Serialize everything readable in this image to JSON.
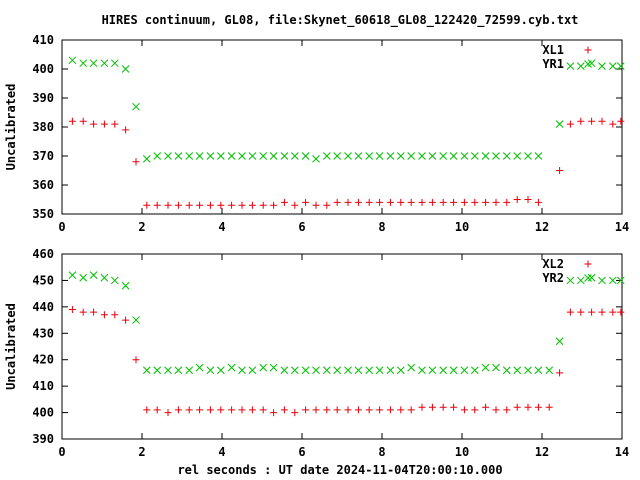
{
  "title": "HIRES continuum, GL08, file:Skynet_60618_GL08_122420_72599.cyb.txt",
  "xlabel": "rel seconds : UT date 2024-11-04T20:00:10.000",
  "chart_data": [
    {
      "type": "scatter",
      "ylabel": "Uncalibrated",
      "xlim": [
        0,
        14
      ],
      "ylim": [
        350,
        410
      ],
      "xticks": [
        "0",
        "2",
        "4",
        "6",
        "8",
        "10",
        "12",
        "14"
      ],
      "yticks": [
        "350",
        "360",
        "370",
        "380",
        "390",
        "400",
        "410"
      ],
      "grid": false,
      "legend": "top-right",
      "series": [
        {
          "name": "XL1",
          "marker": "plus",
          "color": "#e8000b",
          "x": [
            0.26,
            0.53,
            0.79,
            1.06,
            1.32,
            1.59,
            1.85,
            2.12,
            2.38,
            2.65,
            2.91,
            3.18,
            3.44,
            3.71,
            3.97,
            4.24,
            4.5,
            4.76,
            5.03,
            5.29,
            5.56,
            5.82,
            6.09,
            6.35,
            6.62,
            6.88,
            7.15,
            7.41,
            7.68,
            7.94,
            8.21,
            8.47,
            8.73,
            9.0,
            9.26,
            9.53,
            9.79,
            10.06,
            10.32,
            10.59,
            10.85,
            11.12,
            11.38,
            11.65,
            11.91,
            12.18,
            12.44,
            12.71,
            12.97,
            13.24,
            13.5,
            13.77,
            13.97
          ],
          "y": [
            382,
            382,
            381,
            381,
            381,
            379,
            368,
            353,
            353,
            353,
            353,
            353,
            353,
            353,
            353,
            353,
            353,
            353,
            353,
            353,
            354,
            353,
            354,
            353,
            353,
            354,
            354,
            354,
            354,
            354,
            354,
            354,
            354,
            354,
            354,
            354,
            354,
            354,
            354,
            354,
            354,
            354,
            355,
            355,
            354,
            null,
            365,
            381,
            382,
            382,
            382,
            381,
            382
          ]
        },
        {
          "name": "YR1",
          "marker": "cross",
          "color": "#00c000",
          "x": [
            0.26,
            0.53,
            0.79,
            1.06,
            1.32,
            1.59,
            1.85,
            2.12,
            2.38,
            2.65,
            2.91,
            3.18,
            3.44,
            3.71,
            3.97,
            4.24,
            4.5,
            4.76,
            5.03,
            5.29,
            5.56,
            5.82,
            6.09,
            6.35,
            6.62,
            6.88,
            7.15,
            7.41,
            7.68,
            7.94,
            8.21,
            8.47,
            8.73,
            9.0,
            9.26,
            9.53,
            9.79,
            10.06,
            10.32,
            10.59,
            10.85,
            11.12,
            11.38,
            11.65,
            11.91,
            12.18,
            12.44,
            12.71,
            12.97,
            13.24,
            13.5,
            13.77,
            13.97
          ],
          "y": [
            403,
            402,
            402,
            402,
            402,
            400,
            387,
            369,
            370,
            370,
            370,
            370,
            370,
            370,
            370,
            370,
            370,
            370,
            370,
            370,
            370,
            370,
            370,
            369,
            370,
            370,
            370,
            370,
            370,
            370,
            370,
            370,
            370,
            370,
            370,
            370,
            370,
            370,
            370,
            370,
            370,
            370,
            370,
            370,
            370,
            null,
            381,
            401,
            401,
            402,
            401,
            401,
            401
          ]
        }
      ]
    },
    {
      "type": "scatter",
      "ylabel": "Uncalibrated",
      "xlim": [
        0,
        14
      ],
      "ylim": [
        390,
        460
      ],
      "xticks": [
        "0",
        "2",
        "4",
        "6",
        "8",
        "10",
        "12",
        "14"
      ],
      "yticks": [
        "390",
        "400",
        "410",
        "420",
        "430",
        "440",
        "450",
        "460"
      ],
      "grid": false,
      "legend": "top-right",
      "series": [
        {
          "name": "XL2",
          "marker": "plus",
          "color": "#e8000b",
          "x": [
            0.26,
            0.53,
            0.79,
            1.06,
            1.32,
            1.59,
            1.85,
            2.12,
            2.38,
            2.65,
            2.91,
            3.18,
            3.44,
            3.71,
            3.97,
            4.24,
            4.5,
            4.76,
            5.03,
            5.29,
            5.56,
            5.82,
            6.09,
            6.35,
            6.62,
            6.88,
            7.15,
            7.41,
            7.68,
            7.94,
            8.21,
            8.47,
            8.73,
            9.0,
            9.26,
            9.53,
            9.79,
            10.06,
            10.32,
            10.59,
            10.85,
            11.12,
            11.38,
            11.65,
            11.91,
            12.18,
            12.44,
            12.71,
            12.97,
            13.24,
            13.5,
            13.77,
            13.97
          ],
          "y": [
            439,
            438,
            438,
            437,
            437,
            435,
            420,
            401,
            401,
            400,
            401,
            401,
            401,
            401,
            401,
            401,
            401,
            401,
            401,
            400,
            401,
            400,
            401,
            401,
            401,
            401,
            401,
            401,
            401,
            401,
            401,
            401,
            401,
            402,
            402,
            402,
            402,
            401,
            401,
            402,
            401,
            401,
            402,
            402,
            402,
            402,
            415,
            438,
            438,
            438,
            438,
            438,
            438
          ]
        },
        {
          "name": "YR2",
          "marker": "cross",
          "color": "#00c000",
          "x": [
            0.26,
            0.53,
            0.79,
            1.06,
            1.32,
            1.59,
            1.85,
            2.12,
            2.38,
            2.65,
            2.91,
            3.18,
            3.44,
            3.71,
            3.97,
            4.24,
            4.5,
            4.76,
            5.03,
            5.29,
            5.56,
            5.82,
            6.09,
            6.35,
            6.62,
            6.88,
            7.15,
            7.41,
            7.68,
            7.94,
            8.21,
            8.47,
            8.73,
            9.0,
            9.26,
            9.53,
            9.79,
            10.06,
            10.32,
            10.59,
            10.85,
            11.12,
            11.38,
            11.65,
            11.91,
            12.18,
            12.44,
            12.71,
            12.97,
            13.24,
            13.5,
            13.77,
            13.97
          ],
          "y": [
            452,
            451,
            452,
            451,
            450,
            448,
            435,
            416,
            416,
            416,
            416,
            416,
            417,
            416,
            416,
            417,
            416,
            416,
            417,
            417,
            416,
            416,
            416,
            416,
            416,
            416,
            416,
            416,
            416,
            416,
            416,
            416,
            417,
            416,
            416,
            416,
            416,
            416,
            416,
            417,
            417,
            416,
            416,
            416,
            416,
            416,
            427,
            450,
            450,
            451,
            450,
            450,
            450
          ]
        }
      ]
    }
  ]
}
